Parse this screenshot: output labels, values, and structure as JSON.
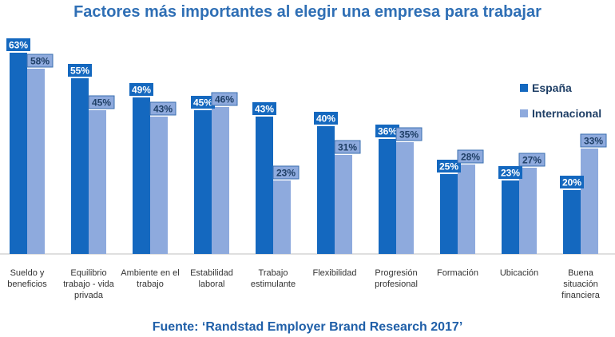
{
  "header": {
    "title": "Factores más importantes al elegir una empresa para trabajar"
  },
  "footer": {
    "source": "Fuente: ‘Randstad Employer Brand Research 2017’"
  },
  "colors": {
    "espana": "#1468bf",
    "internacional": "#8eaadd",
    "title": "#2f6fb5",
    "axis": "#bfbfbf"
  },
  "chart_data": {
    "type": "bar",
    "title": "Factores más importantes al elegir una empresa para trabajar",
    "categories": [
      [
        "Sueldo y",
        "beneficios"
      ],
      [
        "Equilibrio",
        "trabajo - vida",
        "privada"
      ],
      [
        "Ambiente en el",
        "trabajo"
      ],
      [
        "Estabilidad",
        "laboral"
      ],
      [
        "Trabajo",
        "estimulante"
      ],
      [
        "Flexibilidad"
      ],
      [
        "Progresión",
        "profesional"
      ],
      [
        "Formación"
      ],
      [
        "Ubicación"
      ],
      [
        "Buena",
        "situación",
        "financiera"
      ]
    ],
    "series": [
      {
        "name": "España",
        "values": [
          63,
          55,
          49,
          45,
          43,
          40,
          36,
          25,
          23,
          20
        ]
      },
      {
        "name": "Internacional",
        "values": [
          58,
          45,
          43,
          46,
          23,
          31,
          35,
          28,
          27,
          33
        ]
      }
    ],
    "value_suffix": "%",
    "ylim": [
      0,
      63
    ],
    "grid": false,
    "legend": "right"
  }
}
